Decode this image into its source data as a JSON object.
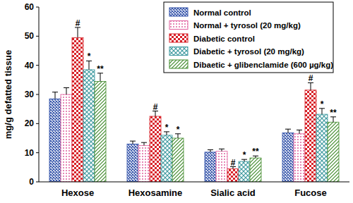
{
  "chart_data": {
    "type": "bar",
    "y_label": "mg/g defatted tissue",
    "categories": [
      "Hexose",
      "Hexosamine",
      "Sialic acid",
      "Fucose"
    ],
    "series": [
      {
        "name": "Normal control",
        "color": "#2e4fa8",
        "values": [
          28.5,
          13,
          10.2,
          16.8
        ],
        "errors": [
          2.3,
          1.0,
          0.8,
          1.3
        ],
        "annotations": [
          null,
          null,
          null,
          null
        ]
      },
      {
        "name": "Normal + tyrosol (20 mg/kg)",
        "color": "#e0609e",
        "values": [
          30,
          12.5,
          10.5,
          16.5
        ],
        "errors": [
          2.3,
          1.0,
          0.8,
          1.3
        ],
        "annotations": [
          null,
          null,
          null,
          null
        ]
      },
      {
        "name": "Diabetic control",
        "color": "#d8232a",
        "values": [
          49.5,
          22.5,
          4.5,
          31.5
        ],
        "errors": [
          3.5,
          1.8,
          0.7,
          2.5
        ],
        "annotations": [
          "#",
          "#",
          "#",
          "#"
        ]
      },
      {
        "name": "Diabetic + tyrosol (20 mg/kg)",
        "color": "#3f9aa0",
        "values": [
          38.5,
          16,
          7,
          23.2
        ],
        "errors": [
          3.0,
          1.2,
          0.7,
          2.0
        ],
        "annotations": [
          "*",
          "*",
          "*",
          "*"
        ]
      },
      {
        "name": "Dibaetic + glibenclamide (600 µg/kg)",
        "color": "#3f8a2a",
        "values": [
          34.5,
          15,
          8.2,
          20.5
        ],
        "errors": [
          2.8,
          1.5,
          0.7,
          1.8
        ],
        "annotations": [
          "**",
          "*",
          "**",
          "**"
        ]
      }
    ],
    "ylim": [
      0,
      60
    ],
    "yticks": [
      0,
      10,
      20,
      30,
      40,
      50,
      60
    ],
    "grid": false,
    "legend": "upper right"
  }
}
